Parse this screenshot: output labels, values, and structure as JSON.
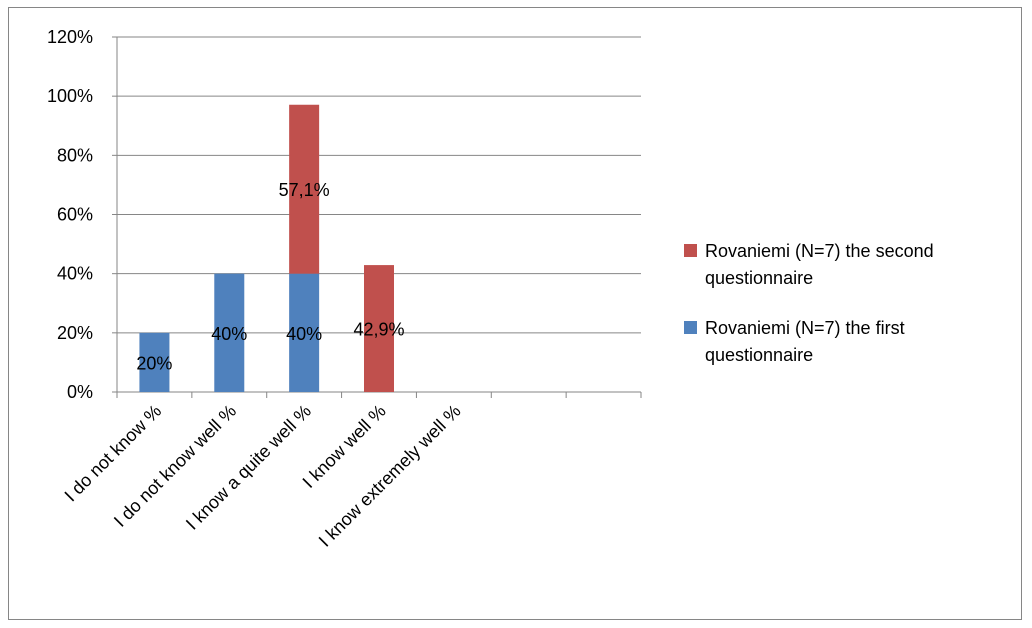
{
  "chart_data": {
    "type": "bar",
    "stacked": true,
    "title": "",
    "xlabel": "",
    "ylabel": "",
    "ylim": [
      0,
      120
    ],
    "y_ticks": [
      "0%",
      "20%",
      "40%",
      "60%",
      "80%",
      "100%",
      "120%"
    ],
    "grid": true,
    "legend_position": "right",
    "categories": [
      "I do not know %",
      "I do not know well %",
      "I know a quite well %",
      "I know well %",
      "I know extremely well %",
      "",
      ""
    ],
    "series": [
      {
        "name": "Rovaniemi (N=7) the first questionnaire",
        "color": "#4f81bd",
        "values": [
          20,
          40,
          40,
          0,
          0,
          0,
          0
        ],
        "labels": [
          "20%",
          "40%",
          "40%",
          "",
          "",
          "",
          ""
        ]
      },
      {
        "name": "Rovaniemi (N=7) the second questionnaire",
        "color": "#c0504d",
        "values": [
          0,
          0,
          57.1,
          42.9,
          0,
          0,
          0
        ],
        "labels": [
          "",
          "",
          "57,1%",
          "42,9%",
          "",
          "",
          ""
        ]
      }
    ],
    "legend": [
      {
        "lines": [
          "Rovaniemi (N=7) the second",
          "questionnaire"
        ],
        "color": "#c0504d"
      },
      {
        "lines": [
          "Rovaniemi (N=7) the first",
          "questionnaire"
        ],
        "color": "#4f81bd"
      }
    ]
  }
}
